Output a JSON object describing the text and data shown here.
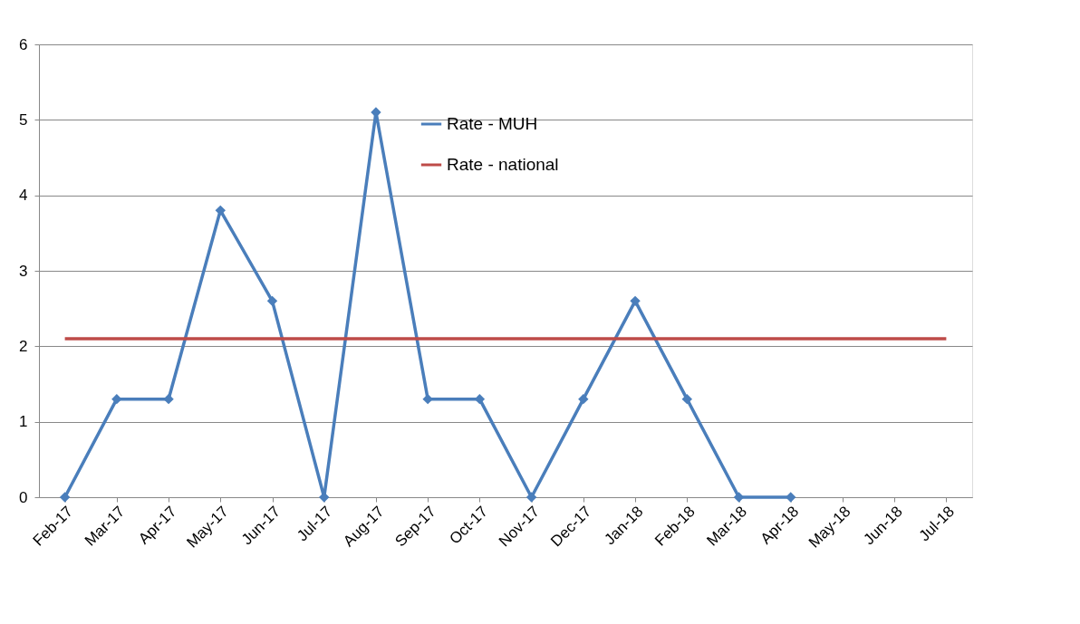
{
  "chart_data": {
    "type": "line",
    "categories": [
      "Feb-17",
      "Mar-17",
      "Apr-17",
      "May-17",
      "Jun-17",
      "Jul-17",
      "Aug-17",
      "Sep-17",
      "Oct-17",
      "Nov-17",
      "Dec-17",
      "Jan-18",
      "Feb-18",
      "Mar-18",
      "Apr-18",
      "May-18",
      "Jun-18",
      "Jul-18"
    ],
    "series": [
      {
        "name": "Rate - MUH",
        "color": "#4a7ebb",
        "marker": "diamond",
        "values": [
          0,
          1.3,
          1.3,
          3.8,
          2.6,
          0,
          5.1,
          1.3,
          1.3,
          0,
          1.3,
          2.6,
          1.3,
          0,
          0,
          null,
          null,
          null
        ]
      },
      {
        "name": "Rate - national",
        "color": "#be4b48",
        "marker": "none",
        "values": [
          2.1,
          2.1,
          2.1,
          2.1,
          2.1,
          2.1,
          2.1,
          2.1,
          2.1,
          2.1,
          2.1,
          2.1,
          2.1,
          2.1,
          2.1,
          2.1,
          2.1,
          2.1
        ]
      }
    ],
    "ylim": [
      0,
      6
    ],
    "yticks": [
      0,
      1,
      2,
      3,
      4,
      5,
      6
    ],
    "grid": "y",
    "legend": "top",
    "line_style": "solid"
  }
}
